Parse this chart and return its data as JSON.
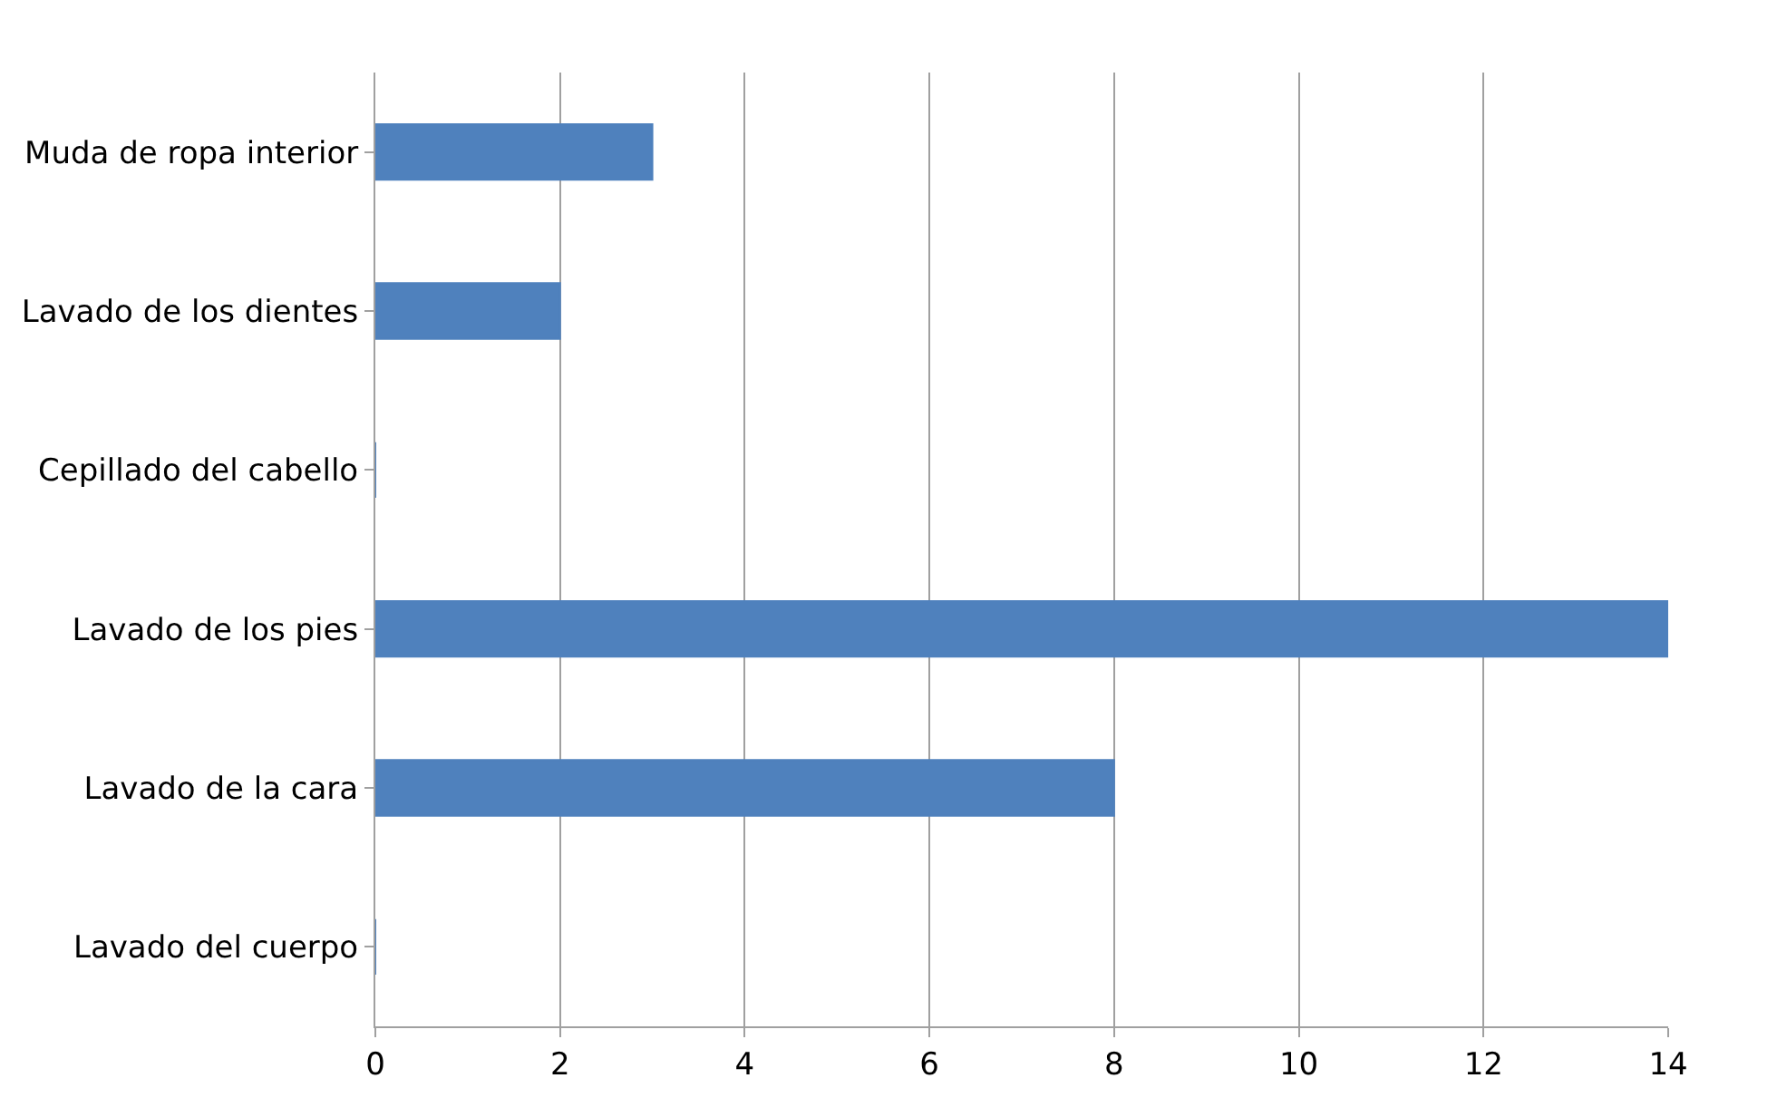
{
  "chart_data": {
    "type": "bar",
    "orientation": "horizontal",
    "categories": [
      "Muda de ropa interior",
      "Lavado de los dientes",
      "Cepillado del cabello",
      "Lavado de los pies",
      "Lavado de la cara",
      "Lavado del cuerpo"
    ],
    "values": [
      3,
      2,
      0,
      14,
      8,
      0
    ],
    "color": "#4f81bd",
    "xlim": [
      0,
      14
    ],
    "xticks": [
      0,
      2,
      4,
      6,
      8,
      10,
      12,
      14
    ],
    "grid": "x",
    "legend": false
  }
}
